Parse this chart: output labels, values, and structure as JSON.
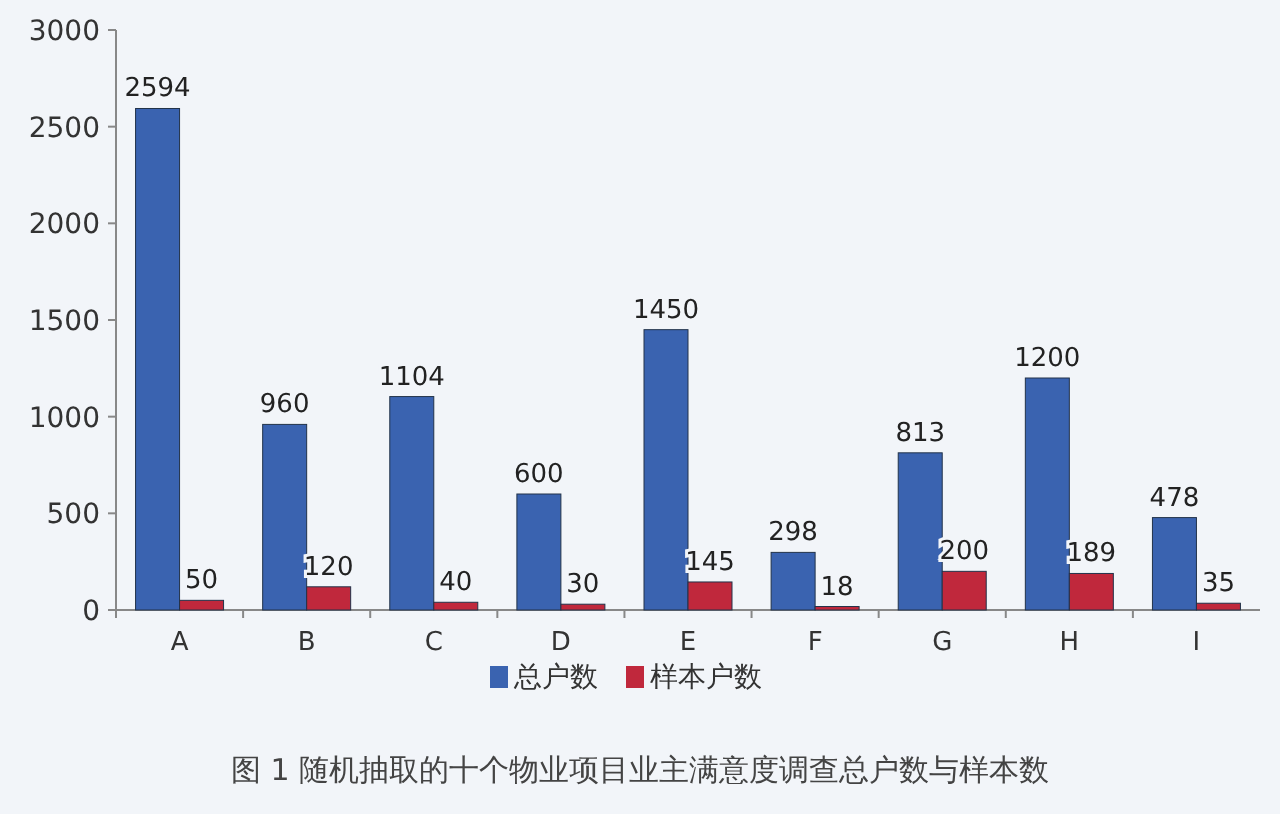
{
  "chart_data": {
    "type": "bar",
    "categories": [
      "A",
      "B",
      "C",
      "D",
      "E",
      "F",
      "G",
      "H",
      "I"
    ],
    "series": [
      {
        "name": "总户数",
        "color": "#3a63b0",
        "values": [
          2594,
          960,
          1104,
          600,
          1450,
          298,
          813,
          1200,
          478
        ]
      },
      {
        "name": "样本户数",
        "color": "#c0283c",
        "values": [
          50,
          120,
          40,
          30,
          145,
          18,
          200,
          189,
          35
        ]
      }
    ],
    "ylim": [
      0,
      3000
    ],
    "yticks": [
      0,
      500,
      1000,
      1500,
      2000,
      2500,
      3000
    ],
    "data_labels": true,
    "grid": false,
    "legend": "bottom",
    "annotations": [
      "图 1  随机抽取的十个物业项目业主满意度调查总户数与样本数"
    ]
  }
}
